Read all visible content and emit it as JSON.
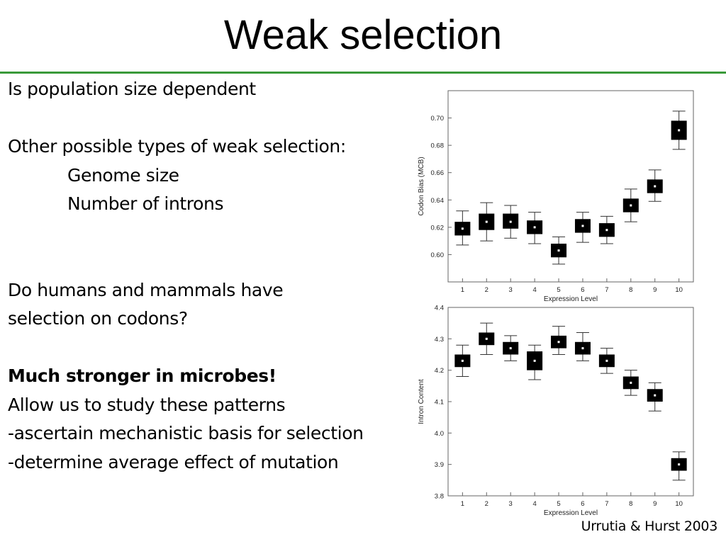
{
  "slide": {
    "title": "Weak selection",
    "accent_color": "#3a9a3a",
    "citation": "Urrutia & Hurst 2003"
  },
  "body": {
    "line1": "Is population size dependent",
    "line2": "Other possible types of weak selection:",
    "bullet1": "Genome size",
    "bullet2": "Number of introns",
    "line3a": "Do humans and mammals have",
    "line3b": " selection on codons?",
    "emphasis": "Much stronger in microbes!",
    "line4": "Allow us to study these patterns",
    "line5": "-ascertain mechanistic basis for selection",
    "line6": "-determine average effect of mutation"
  },
  "chart_data": [
    {
      "type": "scatter",
      "title": "",
      "xlabel": "Expression Level",
      "ylabel": "Codon Bias (MCB)",
      "x": [
        1,
        2,
        3,
        4,
        5,
        6,
        7,
        8,
        9,
        10
      ],
      "categories": [
        "1",
        "2",
        "3",
        "4",
        "5",
        "6",
        "7",
        "8",
        "9",
        "10"
      ],
      "y": [
        0.619,
        0.624,
        0.624,
        0.62,
        0.603,
        0.621,
        0.618,
        0.636,
        0.65,
        0.691
      ],
      "box_low": [
        0.614,
        0.618,
        0.619,
        0.615,
        0.598,
        0.616,
        0.613,
        0.631,
        0.645,
        0.684
      ],
      "box_high": [
        0.624,
        0.63,
        0.63,
        0.625,
        0.608,
        0.626,
        0.623,
        0.641,
        0.655,
        0.698
      ],
      "whisker_low": [
        0.607,
        0.61,
        0.612,
        0.608,
        0.593,
        0.609,
        0.608,
        0.624,
        0.639,
        0.677
      ],
      "whisker_high": [
        0.632,
        0.638,
        0.636,
        0.631,
        0.613,
        0.631,
        0.628,
        0.648,
        0.662,
        0.705
      ],
      "yticks": [
        "0.60",
        "0.62",
        "0.64",
        "0.66",
        "0.68",
        "0.70"
      ],
      "ytick_values": [
        0.6,
        0.62,
        0.64,
        0.66,
        0.68,
        0.7
      ],
      "xlim": [
        0.4,
        10.6
      ],
      "ylim": [
        0.58,
        0.72
      ],
      "grid": false
    },
    {
      "type": "scatter",
      "title": "",
      "xlabel": "Expression Level",
      "ylabel": "Intron Content",
      "x": [
        1,
        2,
        3,
        4,
        5,
        6,
        7,
        8,
        9,
        10
      ],
      "categories": [
        "1",
        "2",
        "3",
        "4",
        "5",
        "6",
        "7",
        "8",
        "9",
        "10"
      ],
      "y": [
        4.23,
        4.3,
        4.27,
        4.23,
        4.29,
        4.27,
        4.23,
        4.16,
        4.12,
        3.9
      ],
      "box_low": [
        4.21,
        4.28,
        4.25,
        4.2,
        4.27,
        4.25,
        4.21,
        4.14,
        4.1,
        3.88
      ],
      "box_high": [
        4.25,
        4.32,
        4.29,
        4.26,
        4.31,
        4.29,
        4.25,
        4.18,
        4.14,
        3.92
      ],
      "whisker_low": [
        4.18,
        4.25,
        4.23,
        4.17,
        4.25,
        4.23,
        4.19,
        4.12,
        4.07,
        3.85
      ],
      "whisker_high": [
        4.28,
        4.35,
        4.31,
        4.28,
        4.34,
        4.32,
        4.27,
        4.2,
        4.16,
        3.94
      ],
      "yticks": [
        "3.8",
        "3.9",
        "4.0",
        "4.1",
        "4.2",
        "4.3",
        "4.4"
      ],
      "ytick_values": [
        3.8,
        3.9,
        4.0,
        4.1,
        4.2,
        4.3,
        4.4
      ],
      "xlim": [
        0.4,
        10.6
      ],
      "ylim": [
        3.8,
        4.4
      ],
      "grid": false
    }
  ]
}
